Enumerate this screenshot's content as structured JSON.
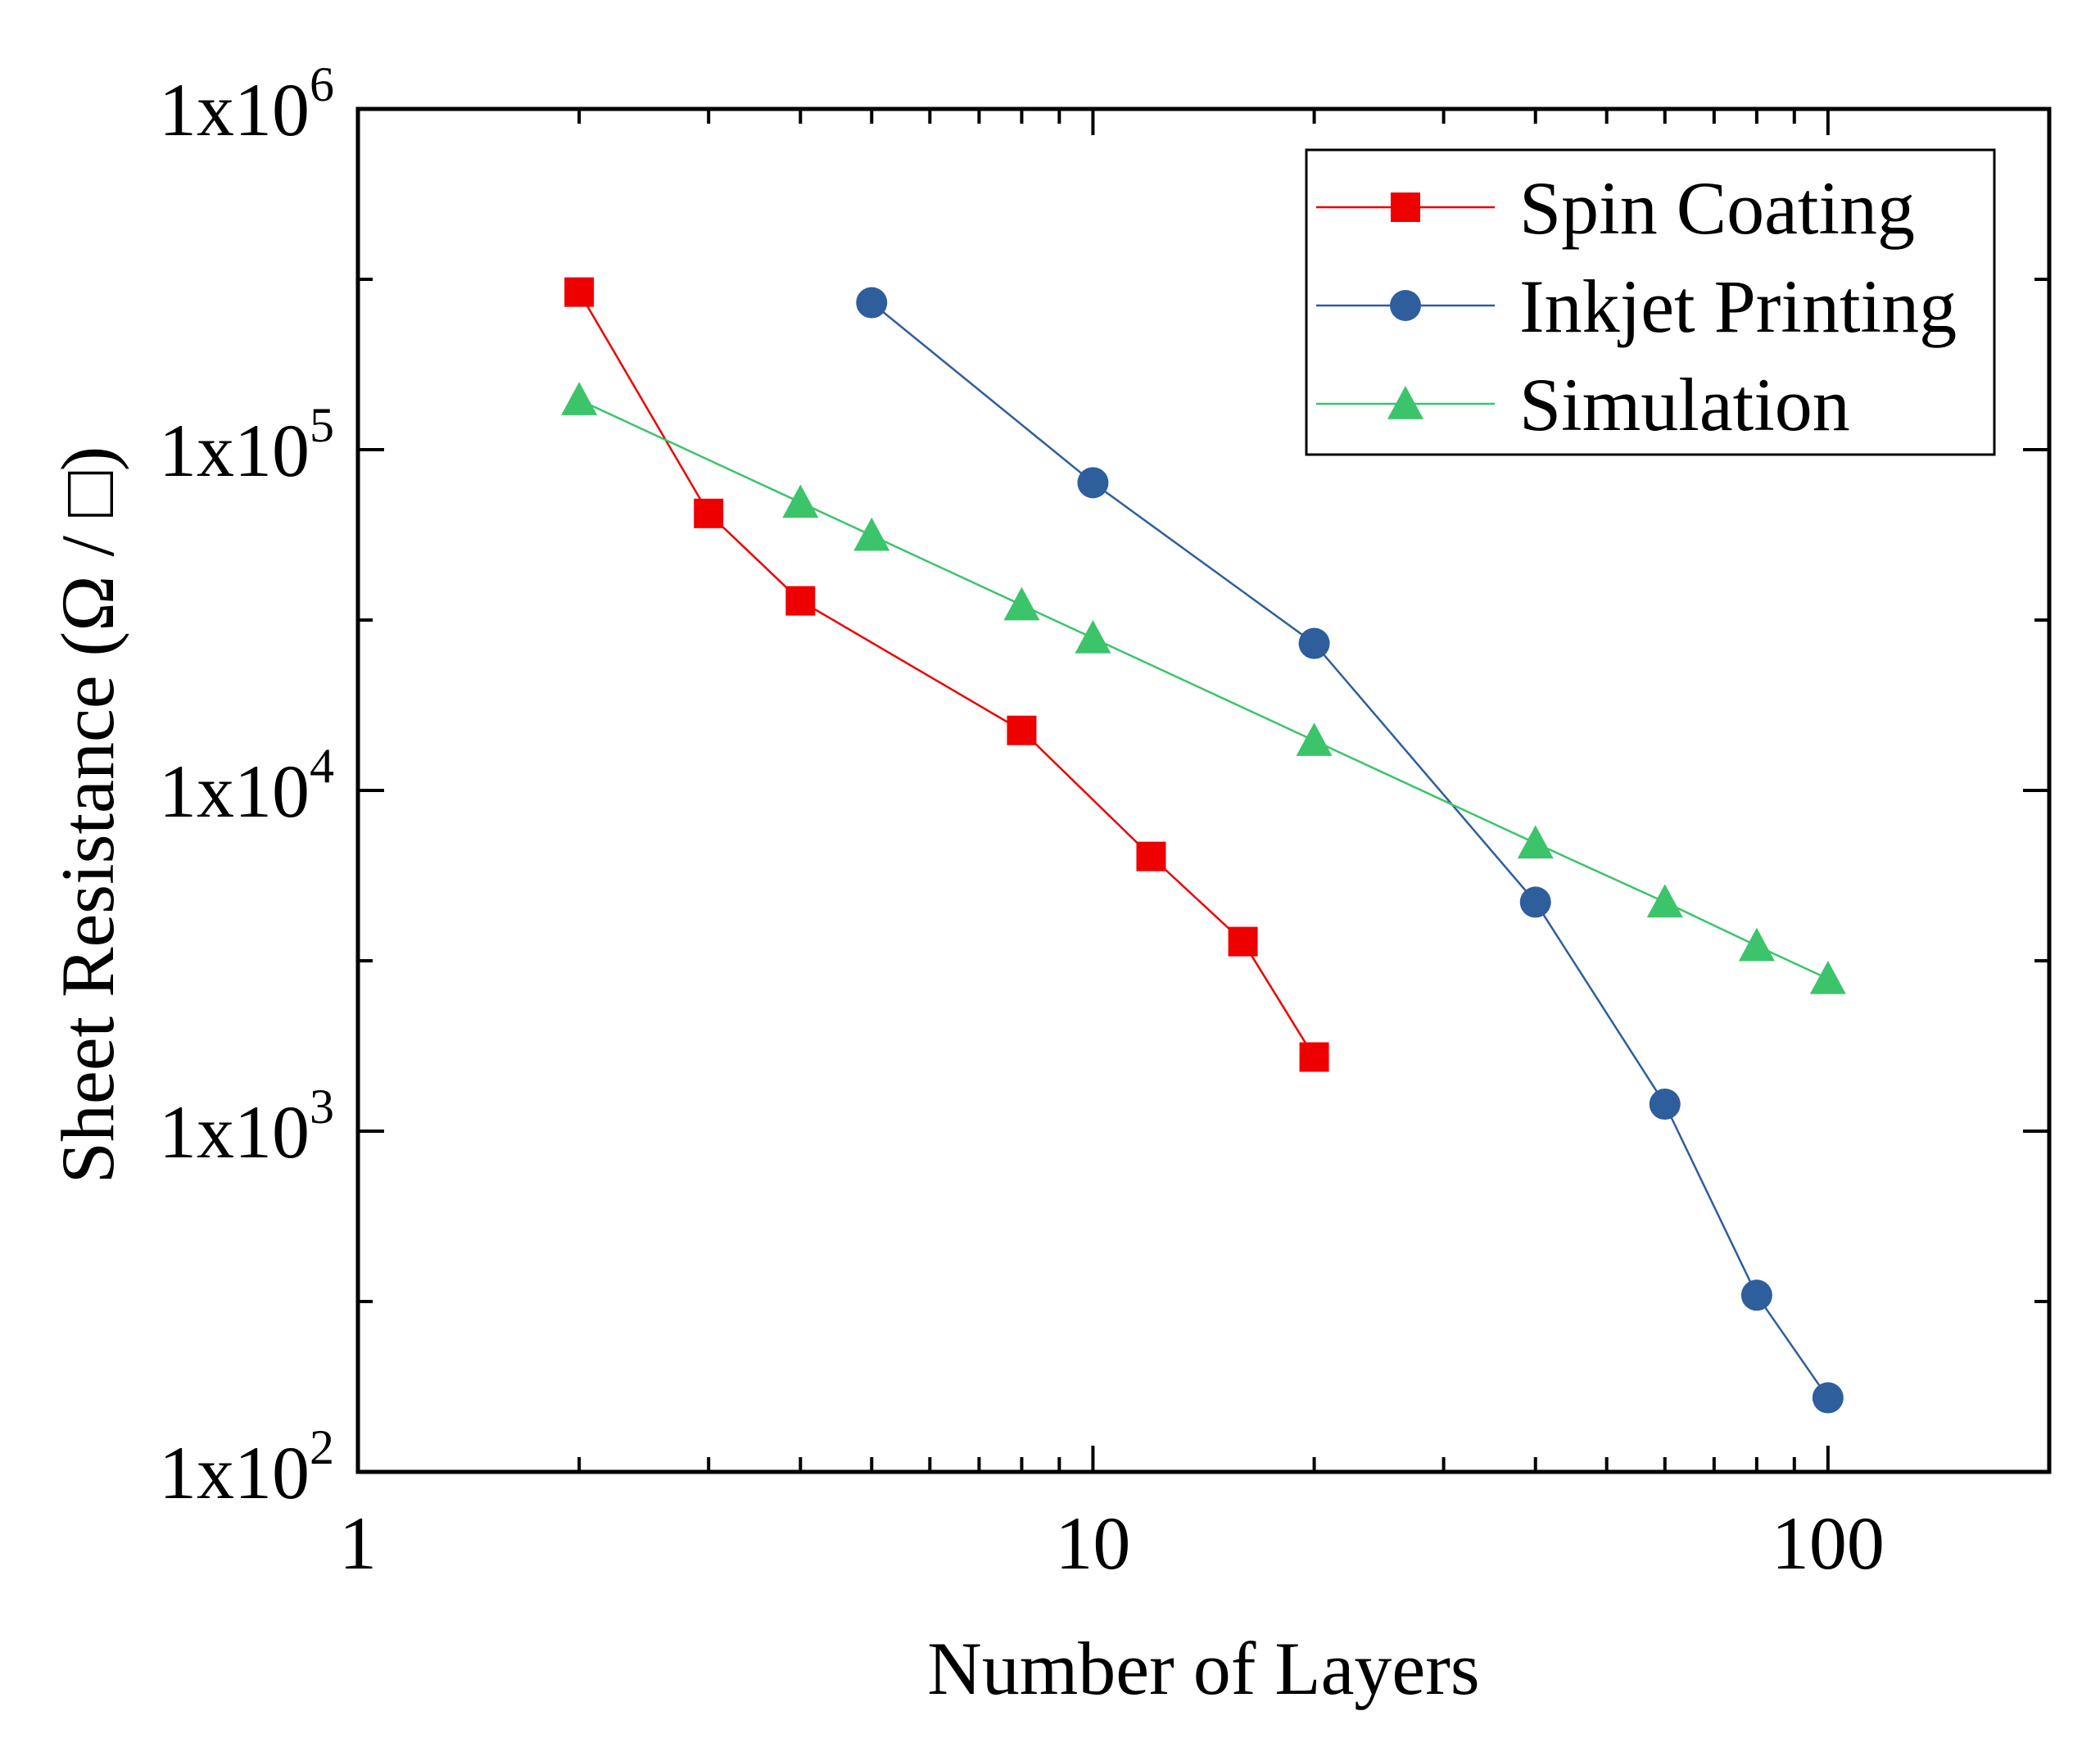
{
  "chart_data": {
    "type": "line",
    "title": "",
    "xlabel": "Number of Layers",
    "ylabel": "Sheet Resistance (Ω / □)",
    "xscale": "log",
    "yscale": "log",
    "xlim": [
      1,
      200
    ],
    "ylim": [
      100,
      1000000
    ],
    "x_ticks": [
      {
        "value": 1,
        "label": "1"
      },
      {
        "value": 10,
        "label": "10"
      },
      {
        "value": 100,
        "label": "100"
      }
    ],
    "y_ticks": [
      {
        "value": 100,
        "base": "1x10",
        "exp": "2"
      },
      {
        "value": 1000,
        "base": "1x10",
        "exp": "3"
      },
      {
        "value": 10000,
        "base": "1x10",
        "exp": "4"
      },
      {
        "value": 100000,
        "base": "1x10",
        "exp": "5"
      },
      {
        "value": 1000000,
        "base": "1x10",
        "exp": "6"
      }
    ],
    "legend_position": "top-right",
    "series": [
      {
        "name": "Spin Coating",
        "color": "#ee0000",
        "marker": "square",
        "x": [
          2,
          3,
          4,
          8,
          12,
          16,
          20
        ],
        "y": [
          290000,
          65000,
          36000,
          15000,
          6400,
          3600,
          1650
        ]
      },
      {
        "name": "Inkjet Printing",
        "color": "#2e5e9c",
        "marker": "circle",
        "x": [
          5,
          10,
          20,
          40,
          60,
          80,
          100
        ],
        "y": [
          270000,
          80000,
          27000,
          4700,
          1200,
          330,
          165
        ]
      },
      {
        "name": "Simulation",
        "color": "#3cc46a",
        "marker": "triangle",
        "x": [
          2,
          4,
          5,
          8,
          10,
          20,
          40,
          60,
          80,
          100
        ],
        "y": [
          140000,
          70000,
          56000,
          35000,
          28000,
          14000,
          7000,
          4700,
          3500,
          2800
        ]
      }
    ]
  }
}
